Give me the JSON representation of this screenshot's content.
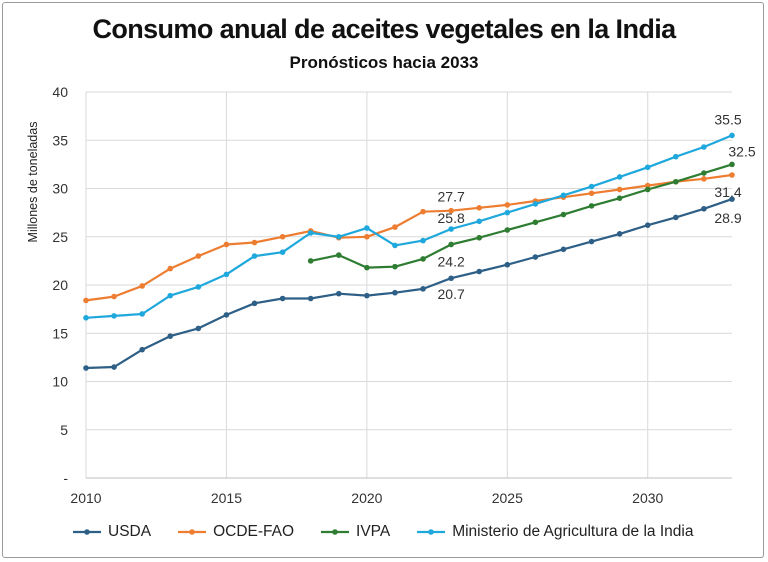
{
  "chart_data": {
    "type": "line",
    "title": "Consumo anual de aceites vegetales en la India",
    "subtitle": "Pronósticos hacia 2033",
    "ylabel": "Millones de toneladas",
    "xlabel": "",
    "xlim": [
      2010,
      2033
    ],
    "ylim": [
      0,
      40
    ],
    "x_ticks": [
      "2010",
      "2015",
      "2020",
      "2025",
      "2030"
    ],
    "y_ticks": [
      "-",
      "5",
      "10",
      "15",
      "20",
      "25",
      "30",
      "35",
      "40"
    ],
    "grid": true,
    "legend_position": "bottom",
    "series": [
      {
        "name": "USDA",
        "color": "#2e5f86",
        "x": [
          2010,
          2011,
          2012,
          2013,
          2014,
          2015,
          2016,
          2017,
          2018,
          2019,
          2020,
          2021,
          2022,
          2023,
          2024,
          2025,
          2026,
          2027,
          2028,
          2029,
          2030,
          2031,
          2032,
          2033
        ],
        "values": [
          11.4,
          11.5,
          13.3,
          14.7,
          15.5,
          16.9,
          18.1,
          18.6,
          18.6,
          19.1,
          18.9,
          19.2,
          19.6,
          20.7,
          21.4,
          22.1,
          22.9,
          23.7,
          24.5,
          25.3,
          26.2,
          27.0,
          27.9,
          28.9
        ]
      },
      {
        "name": "OCDE-FAO",
        "color": "#ed7d31",
        "x": [
          2010,
          2011,
          2012,
          2013,
          2014,
          2015,
          2016,
          2017,
          2018,
          2019,
          2020,
          2021,
          2022,
          2023,
          2024,
          2025,
          2026,
          2027,
          2028,
          2029,
          2030,
          2031,
          2032,
          2033
        ],
        "values": [
          18.4,
          18.8,
          19.9,
          21.7,
          23.0,
          24.2,
          24.4,
          25.0,
          25.6,
          24.9,
          25.0,
          26.0,
          27.6,
          27.7,
          28.0,
          28.3,
          28.7,
          29.1,
          29.5,
          29.9,
          30.3,
          30.7,
          31.0,
          31.4
        ]
      },
      {
        "name": "IVPA",
        "color": "#2e7d32",
        "x": [
          2018,
          2019,
          2020,
          2021,
          2022,
          2023,
          2024,
          2025,
          2026,
          2027,
          2028,
          2029,
          2030,
          2031,
          2032,
          2033
        ],
        "values": [
          22.5,
          23.1,
          21.8,
          21.9,
          22.7,
          24.2,
          24.9,
          25.7,
          26.5,
          27.3,
          28.2,
          29.0,
          29.9,
          30.7,
          31.6,
          32.5
        ]
      },
      {
        "name": "Ministerio de Agricultura de la India",
        "color": "#1fa8dc",
        "x": [
          2010,
          2011,
          2012,
          2013,
          2014,
          2015,
          2016,
          2017,
          2018,
          2019,
          2020,
          2021,
          2022,
          2023,
          2024,
          2025,
          2026,
          2027,
          2028,
          2029,
          2030,
          2031,
          2032,
          2033
        ],
        "values": [
          16.6,
          16.8,
          17.0,
          18.9,
          19.8,
          21.1,
          23.0,
          23.4,
          25.4,
          25.0,
          25.9,
          24.1,
          24.6,
          25.8,
          26.6,
          27.5,
          28.4,
          29.3,
          30.2,
          31.2,
          32.2,
          33.3,
          34.3,
          35.5
        ]
      }
    ],
    "annotations": [
      {
        "text": "27.7",
        "series": "OCDE-FAO",
        "x": 2023
      },
      {
        "text": "25.8",
        "series": "Ministerio de Agricultura de la India",
        "x": 2023
      },
      {
        "text": "24.2",
        "series": "IVPA",
        "x": 2023
      },
      {
        "text": "20.7",
        "series": "USDA",
        "x": 2023
      },
      {
        "text": "35.5",
        "series": "Ministerio de Agricultura de la India",
        "x": 2033
      },
      {
        "text": "32.5",
        "series": "IVPA",
        "x": 2033
      },
      {
        "text": "31.4",
        "series": "OCDE-FAO",
        "x": 2033
      },
      {
        "text": "28.9",
        "series": "USDA",
        "x": 2033
      }
    ]
  }
}
